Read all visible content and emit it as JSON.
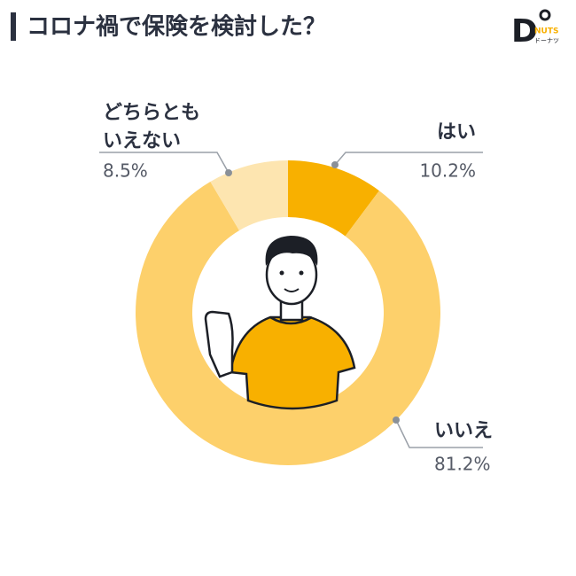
{
  "chart_data": {
    "type": "pie",
    "donut": true,
    "title": "コロナ禍で保険を検討した？",
    "categories": [
      [
        "はい"
      ],
      [
        "いいえ"
      ],
      [
        "どちらとも",
        "いえない"
      ]
    ],
    "values": [
      10.2,
      81.2,
      8.5
    ],
    "value_labels": [
      "10.2%",
      "81.2%",
      "8.5%"
    ],
    "colors": [
      "#f8b000",
      "#fdd06b",
      "#fde5b0"
    ]
  },
  "logo": {
    "mark": "D",
    "name": "NUTS",
    "kana": "ドーナツ"
  }
}
